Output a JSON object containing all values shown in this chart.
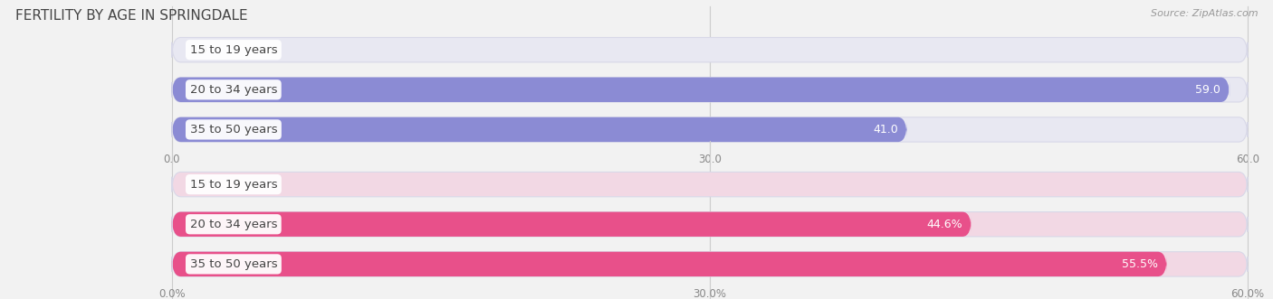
{
  "title": "FERTILITY BY AGE IN SPRINGDALE",
  "source": "Source: ZipAtlas.com",
  "top_bars": {
    "categories": [
      "15 to 19 years",
      "20 to 34 years",
      "35 to 50 years"
    ],
    "values": [
      0.0,
      59.0,
      41.0
    ],
    "max": 60.0,
    "ticks": [
      0.0,
      30.0,
      60.0
    ],
    "tick_labels": [
      "0.0",
      "30.0",
      "60.0"
    ],
    "bar_color": "#8B8BD4",
    "bar_bg_color": "#E8E8F2",
    "label_text_color": "#444444"
  },
  "bottom_bars": {
    "categories": [
      "15 to 19 years",
      "20 to 34 years",
      "35 to 50 years"
    ],
    "values": [
      0.0,
      44.6,
      55.5
    ],
    "max": 60.0,
    "ticks": [
      0.0,
      30.0,
      60.0
    ],
    "tick_labels": [
      "0.0%",
      "30.0%",
      "60.0%"
    ],
    "bar_color": "#E8508A",
    "bar_bg_color": "#F2D8E4",
    "label_text_color": "#444444"
  },
  "bar_height": 0.62,
  "category_label_fontsize": 9.5,
  "value_label_fontsize": 9,
  "title_fontsize": 11,
  "source_fontsize": 8,
  "bg_color": "#F2F2F2",
  "gridline_color": "#CCCCCC",
  "tick_fontsize": 8.5,
  "tick_color": "#888888"
}
